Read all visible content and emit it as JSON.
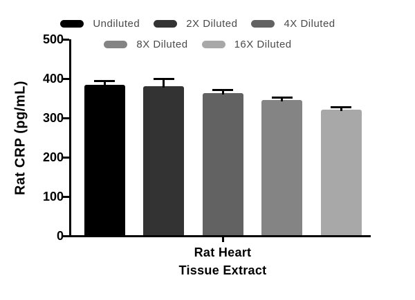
{
  "chart_data": {
    "type": "bar",
    "title": "",
    "ylabel": "Rat CRP (pg/mL)",
    "xlabel_lines": [
      "Rat Heart",
      "Tissue Extract"
    ],
    "ylim": [
      0,
      500
    ],
    "yticks": [
      0,
      100,
      200,
      300,
      400,
      500
    ],
    "grid": false,
    "legend_position": "top-center",
    "legend_rows": [
      [
        0,
        1,
        2
      ],
      [
        3,
        4
      ]
    ],
    "categories": [
      "Undiluted",
      "2X Diluted",
      "4X Diluted",
      "8X Diluted",
      "16X Diluted"
    ],
    "values": [
      385,
      381,
      364,
      346,
      321
    ],
    "errors": [
      6,
      16,
      5,
      3,
      3
    ],
    "error_direction": "plus",
    "bar_colors": [
      "#000000",
      "#333333",
      "#626262",
      "#848484",
      "#a8a8a8"
    ],
    "error_bar_color": "#000000",
    "axis_color": "#000000",
    "text_color": "#000000",
    "legend_text_color": "#4a4a4a",
    "background_color": "#ffffff"
  }
}
